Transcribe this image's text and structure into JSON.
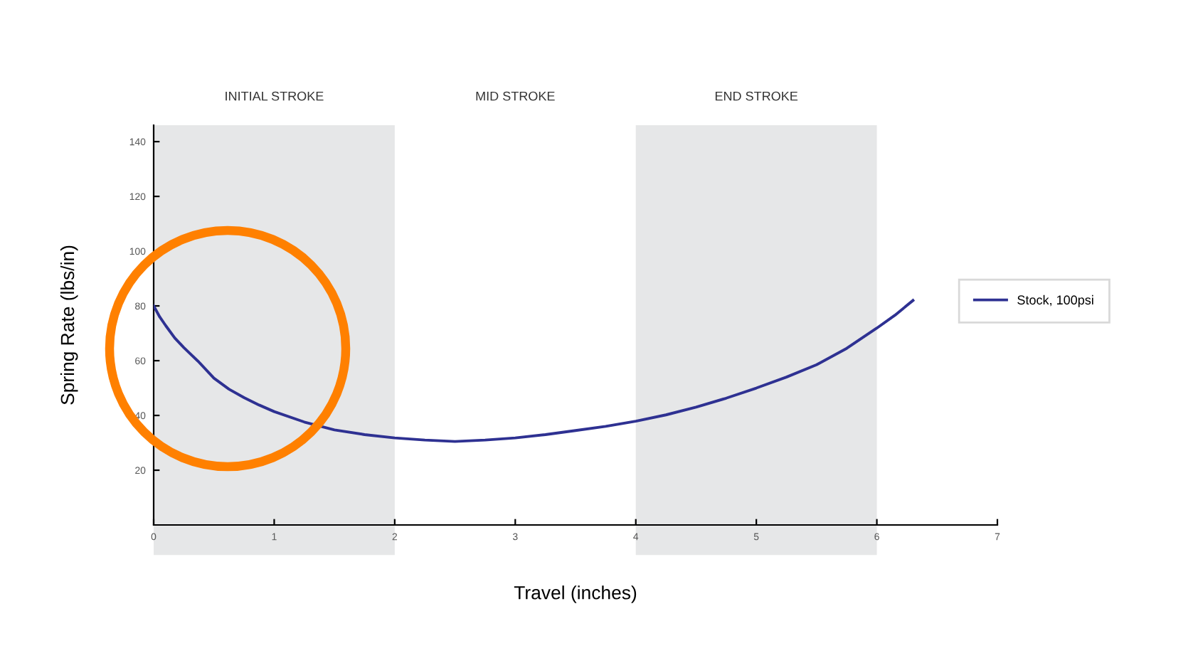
{
  "chart_data": {
    "type": "line",
    "xlabel": "Travel (inches)",
    "ylabel": "Spring Rate (lbs/in)",
    "series": [
      {
        "name": "Stock, 100psi",
        "color": "#2e3192",
        "x": [
          0,
          0.05,
          0.1,
          0.175,
          0.25,
          0.375,
          0.5,
          0.625,
          0.75,
          0.875,
          1,
          1.25,
          1.5,
          1.75,
          2,
          2.25,
          2.5,
          2.75,
          3,
          3.25,
          3.5,
          3.75,
          4,
          4.25,
          4.5,
          4.75,
          5,
          5.25,
          5.5,
          5.75,
          6,
          6.15,
          6.3
        ],
        "values": [
          80,
          76,
          72.8,
          68.3,
          64.8,
          59.5,
          53.6,
          49.6,
          46.5,
          43.8,
          41.4,
          37.6,
          34.7,
          33,
          31.8,
          31,
          30.5,
          31,
          31.8,
          33,
          34.5,
          36,
          37.9,
          40.2,
          43,
          46.3,
          50,
          54,
          58.5,
          64.5,
          71.9,
          76.6,
          82
        ]
      }
    ],
    "xlim": [
      0,
      7
    ],
    "ylim": [
      0,
      146
    ],
    "xticks": [
      0,
      1,
      2,
      3,
      4,
      5,
      6,
      7
    ],
    "yticks": [
      20,
      40,
      60,
      80,
      100,
      120,
      140
    ],
    "bands": [
      {
        "axis": "x",
        "from": 0,
        "to": 2,
        "label": "INITIAL STROKE",
        "color": "#e6e7e8"
      },
      {
        "axis": "x",
        "from": 4,
        "to": 6,
        "label": "END STROKE",
        "color": "#e6e7e8"
      }
    ],
    "annotations": [
      "MID STROKE"
    ],
    "grid": false,
    "legend": "right",
    "marker": "none",
    "line_style": "solid"
  }
}
